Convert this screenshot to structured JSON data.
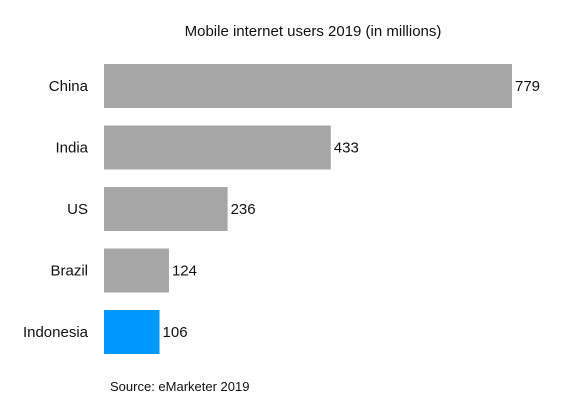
{
  "chart_data": {
    "type": "bar",
    "orientation": "horizontal",
    "title": "Mobile internet users 2019 (in millions)",
    "categories": [
      "China",
      "India",
      "US",
      "Brazil",
      "Indonesia"
    ],
    "values": [
      779,
      433,
      236,
      124,
      106
    ],
    "value_labels": [
      "779",
      "433",
      "236",
      "124",
      "106"
    ],
    "xlabel": "",
    "ylabel": "",
    "xlim": [
      0,
      779
    ],
    "grid": false,
    "legend": "none",
    "colors": {
      "default_bar": "#a6a6a6",
      "highlight_bar": "#0099ff"
    },
    "highlight_category": "Indonesia"
  },
  "footer": {
    "source": "Source: eMarketer 2019"
  }
}
